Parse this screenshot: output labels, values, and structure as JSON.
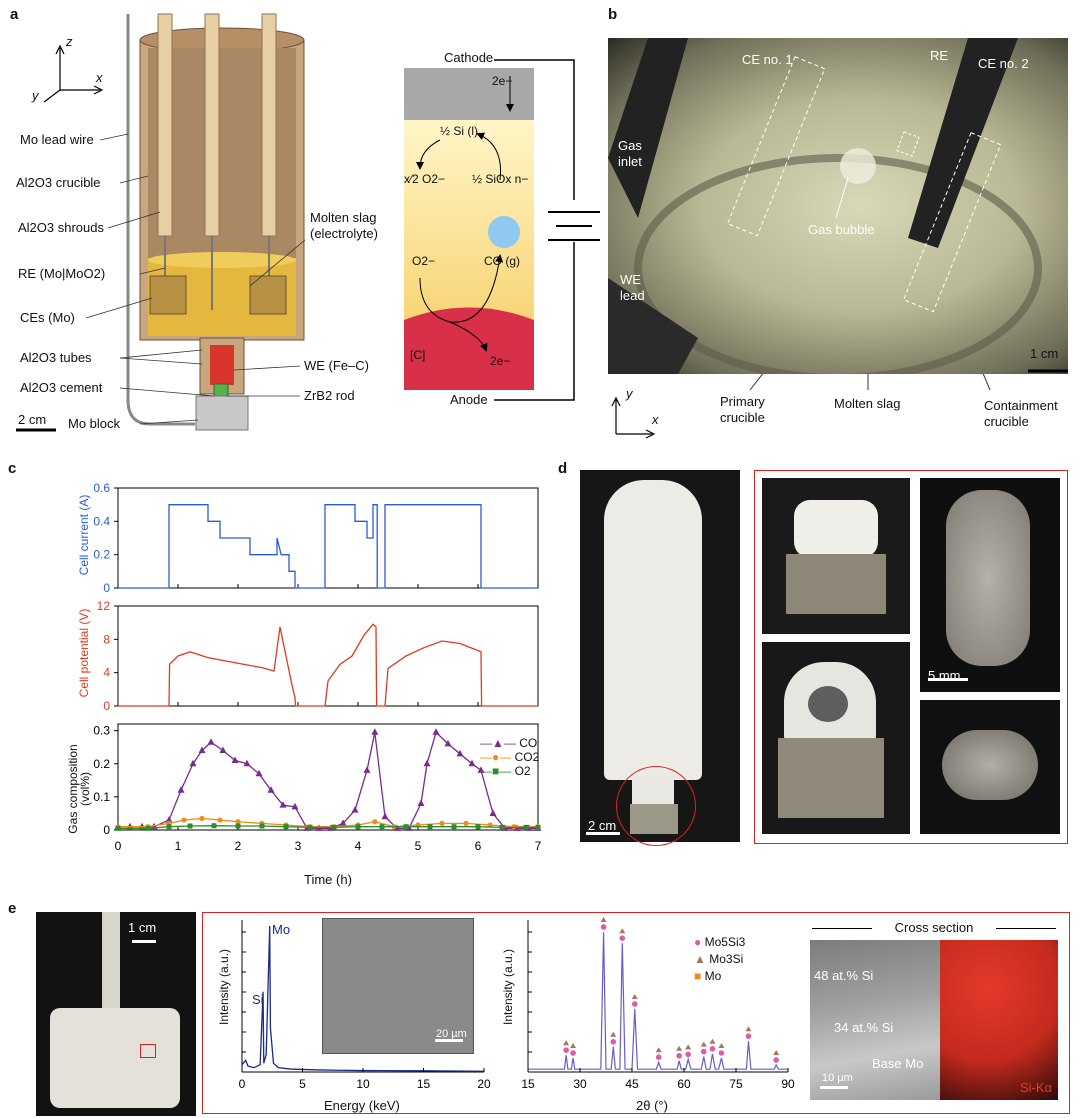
{
  "panel_labels": {
    "a": "a",
    "b": "b",
    "c": "c",
    "d": "d",
    "e": "e"
  },
  "panel_a": {
    "axes": {
      "z": "z",
      "y": "y",
      "x": "x"
    },
    "labels": {
      "mo_lead_wire": "Mo lead wire",
      "al2o3_crucible": "Al2O3 crucible",
      "al2o3_shrouds": "Al2O3 shrouds",
      "re": "RE (Mo|MoO2)",
      "ces": "CEs (Mo)",
      "al2o3_tubes": "Al2O3 tubes",
      "al2o3_cement": "Al2O3 cement",
      "mo_block": "Mo block",
      "molten_slag_1": "Molten slag",
      "molten_slag_2": "(electrolyte)",
      "we": "WE (Fe–C)",
      "zrb2": "ZrB2 rod",
      "scale": "2 cm"
    },
    "schematic": {
      "cathode": "Cathode",
      "anode": "Anode",
      "top_e": "2e−",
      "si": "½ Si (l)",
      "o2_left": "x⁄2 O2−",
      "siox": "½ SiOx n−",
      "o2": "O2−",
      "co": "CO (g)",
      "c": "[C]",
      "bottom_e": "2e−"
    }
  },
  "panel_b": {
    "labels": {
      "ce1": "CE no. 1",
      "re": "RE",
      "ce2": "CE no. 2",
      "gas_inlet_1": "Gas",
      "gas_inlet_2": "inlet",
      "gas_bubble": "Gas bubble",
      "we_1": "WE",
      "we_2": "lead",
      "scale": "1 cm",
      "primary_1": "Primary",
      "primary_2": "crucible",
      "molten_slag": "Molten slag",
      "containment_1": "Containment",
      "containment_2": "crucible",
      "y": "y",
      "x": "x"
    }
  },
  "panel_c": {
    "xlabel": "Time (h)",
    "xticks": [
      "0",
      "1",
      "2",
      "3",
      "4",
      "5",
      "6",
      "7"
    ],
    "top": {
      "ylabel": "Cell current (A)",
      "yticks": [
        "0",
        "0.2",
        "0.4",
        "0.6"
      ],
      "color": "#2a5bd7"
    },
    "mid": {
      "ylabel": "Cell potential (V)",
      "yticks": [
        "0",
        "4",
        "8",
        "12"
      ],
      "color": "#e03a1e"
    },
    "bottom": {
      "ylabel_1": "Gas composition",
      "ylabel_2": "(vol%)",
      "yticks": [
        "0",
        "0.1",
        "0.2",
        "0.3"
      ],
      "legend": [
        "CO",
        "CO2",
        "O2"
      ],
      "colors": [
        "#7b2a90",
        "#f28a1a",
        "#2e8b2e"
      ]
    }
  },
  "chart_data": [
    {
      "type": "line",
      "ylabel": "Cell current (A)",
      "xlim": [
        0,
        7
      ],
      "ylim": [
        0,
        0.6
      ],
      "series": [
        {
          "x": [
            0,
            0.85,
            0.85,
            1.3,
            1.3,
            1.5,
            1.5,
            1.7,
            1.7,
            2.2,
            2.2,
            2.65,
            2.65,
            2.72,
            2.78,
            2.85,
            2.85,
            2.95,
            2.95,
            3.45,
            3.45,
            3.95,
            3.95,
            4.15,
            4.15,
            4.25,
            4.25,
            4.32,
            4.32,
            4.45,
            4.45,
            6.05,
            6.05,
            7
          ],
          "y": [
            0,
            0,
            0.5,
            0.5,
            0.5,
            0.5,
            0.4,
            0.4,
            0.3,
            0.3,
            0.2,
            0.2,
            0.3,
            0.2,
            0.2,
            0.2,
            0.1,
            0.1,
            0,
            0,
            0.5,
            0.5,
            0.4,
            0.4,
            0.3,
            0.3,
            0.5,
            0.5,
            0,
            0,
            0.5,
            0.5,
            0,
            0
          ]
        }
      ]
    },
    {
      "type": "line",
      "ylabel": "Cell potential (V)",
      "xlim": [
        0,
        7
      ],
      "ylim": [
        0,
        12
      ],
      "series": [
        {
          "x": [
            0,
            0.85,
            0.86,
            1.0,
            1.2,
            1.5,
            1.8,
            2.1,
            2.4,
            2.6,
            2.7,
            2.8,
            2.9,
            2.95,
            2.96,
            3.45,
            3.5,
            3.7,
            3.9,
            4.1,
            4.25,
            4.3,
            4.31,
            4.45,
            4.5,
            4.8,
            5.1,
            5.4,
            5.7,
            5.95,
            6.05,
            6.06,
            7
          ],
          "y": [
            0,
            0,
            5,
            6,
            6.5,
            5.8,
            5.4,
            5,
            4.6,
            4.2,
            9.5,
            6,
            2.5,
            1,
            0,
            0,
            3,
            5,
            6,
            8.5,
            9.8,
            9.5,
            0,
            0,
            4.5,
            6,
            7,
            7.8,
            7.5,
            6.8,
            6.5,
            0,
            0
          ]
        }
      ]
    },
    {
      "type": "line",
      "ylabel": "Gas composition (vol%)",
      "xlim": [
        0,
        7
      ],
      "ylim": [
        0,
        0.32
      ],
      "series": [
        {
          "name": "CO",
          "x": [
            0,
            0.2,
            0.4,
            0.6,
            0.85,
            1.05,
            1.25,
            1.4,
            1.55,
            1.75,
            1.95,
            2.15,
            2.35,
            2.55,
            2.75,
            2.95,
            3.15,
            3.35,
            3.55,
            3.75,
            3.95,
            4.15,
            4.28,
            4.45,
            4.65,
            4.85,
            5.05,
            5.15,
            5.3,
            5.5,
            5.7,
            5.9,
            6.05,
            6.25,
            6.45,
            6.65,
            6.85,
            7
          ],
          "y": [
            0.01,
            0.01,
            0.01,
            0.01,
            0.03,
            0.12,
            0.2,
            0.24,
            0.265,
            0.24,
            0.21,
            0.2,
            0.17,
            0.12,
            0.075,
            0.07,
            0.005,
            0.005,
            0.005,
            0.02,
            0.06,
            0.18,
            0.295,
            0.04,
            0.005,
            0.005,
            0.08,
            0.2,
            0.295,
            0.26,
            0.23,
            0.2,
            0.18,
            0.05,
            0.005,
            0.005,
            0.005,
            0.005
          ]
        },
        {
          "name": "CO2",
          "x": [
            0,
            0.5,
            0.85,
            1.1,
            1.4,
            1.7,
            2.0,
            2.4,
            2.8,
            3.2,
            3.6,
            4.0,
            4.28,
            4.6,
            5.0,
            5.4,
            5.8,
            6.2,
            6.6,
            7
          ],
          "y": [
            0.01,
            0.01,
            0.02,
            0.03,
            0.035,
            0.03,
            0.025,
            0.02,
            0.015,
            0.01,
            0.01,
            0.015,
            0.025,
            0.01,
            0.015,
            0.02,
            0.02,
            0.015,
            0.01,
            0.01
          ]
        },
        {
          "name": "O2",
          "x": [
            0,
            0.5,
            0.85,
            1.2,
            1.6,
            2.0,
            2.4,
            2.8,
            3.2,
            3.6,
            4.0,
            4.4,
            4.8,
            5.2,
            5.6,
            6.0,
            6.4,
            6.8,
            7
          ],
          "y": [
            0.005,
            0.005,
            0.01,
            0.012,
            0.013,
            0.012,
            0.012,
            0.01,
            0.008,
            0.008,
            0.01,
            0.01,
            0.01,
            0.01,
            0.01,
            0.01,
            0.008,
            0.008,
            0.008
          ]
        }
      ]
    },
    {
      "type": "line",
      "xlabel": "Energy (keV)",
      "ylabel": "Intensity (a.u.)",
      "xlim": [
        0,
        20
      ],
      "series": [
        {
          "x": [
            0,
            0.3,
            0.5,
            1.0,
            1.5,
            1.74,
            1.8,
            2.0,
            2.29,
            2.35,
            2.6,
            3,
            4,
            6,
            8,
            10,
            15,
            20
          ],
          "y": [
            0.05,
            0.08,
            0.04,
            0.03,
            0.05,
            0.55,
            0.06,
            0.12,
            1.0,
            0.3,
            0.06,
            0.03,
            0.02,
            0.015,
            0.012,
            0.01,
            0.008,
            0.005
          ]
        }
      ],
      "annotations": [
        "Mo",
        "Si"
      ],
      "inset_scale": "20 µm"
    },
    {
      "type": "line",
      "xlabel": "2θ (°)",
      "ylabel": "Intensity (a.u.)",
      "xlim": [
        15,
        90
      ],
      "xticks": [
        "15",
        "30",
        "45",
        "60",
        "75",
        "90"
      ],
      "legend": [
        "Mo5Si3",
        "Mo3Si",
        "Mo"
      ],
      "series": [
        {
          "x": [
            15,
            25.5,
            26,
            26.5,
            27.5,
            28,
            28.5,
            36,
            36.8,
            37.5,
            39,
            39.6,
            40.2,
            41.5,
            42.2,
            43,
            45,
            45.8,
            46.6,
            52,
            52.7,
            53.4,
            58,
            58.6,
            59.2,
            60.5,
            61.2,
            62,
            65,
            65.7,
            66.4,
            67.5,
            68.2,
            69,
            70,
            70.8,
            71.5,
            72,
            78,
            78.6,
            79.3,
            86,
            86.6,
            87.2,
            90
          ],
          "y": [
            0.02,
            0.02,
            0.12,
            0.02,
            0.02,
            0.1,
            0.02,
            0.02,
            1.0,
            0.02,
            0.02,
            0.18,
            0.02,
            0.02,
            0.92,
            0.02,
            0.02,
            0.45,
            0.02,
            0.02,
            0.07,
            0.02,
            0.02,
            0.08,
            0.02,
            0.02,
            0.09,
            0.02,
            0.02,
            0.11,
            0.02,
            0.02,
            0.13,
            0.02,
            0.02,
            0.1,
            0.02,
            0.02,
            0.02,
            0.22,
            0.02,
            0.02,
            0.05,
            0.02,
            0.02
          ]
        }
      ]
    }
  ],
  "panel_d": {
    "scale_main": "2 cm",
    "scale_mid": "5 mm"
  },
  "panel_e": {
    "scale_photo": "1 cm",
    "eds_mo": "Mo",
    "eds_si": "Si",
    "inset_scale": "20 µm",
    "eds_xticks": [
      "0",
      "5",
      "10",
      "15",
      "20"
    ],
    "xrd_legend": [
      "Mo5Si3",
      "Mo3Si",
      "Mo"
    ],
    "cross_section": "Cross section",
    "cs_48": "48 at.% Si",
    "cs_34": "34 at.% Si",
    "cs_base": "Base Mo",
    "cs_scale": "10 µm",
    "cs_map": "Si-Kα"
  }
}
